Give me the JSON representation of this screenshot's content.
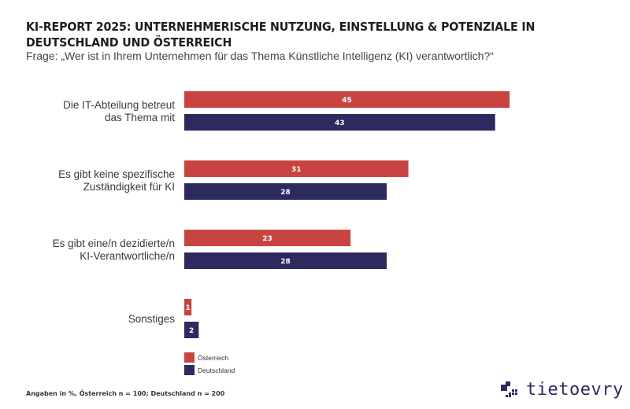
{
  "chart_data": {
    "type": "bar",
    "orientation": "horizontal",
    "title": "KI-REPORT 2025: UNTERNEHMERISCHE NUTZUNG, EINSTELLUNG & POTENZIALE IN DEUTSCHLAND UND ÖSTERREICH",
    "subtitle": "Frage: „Wer ist in Ihrem Unternehmen für das Thema Künstliche Intelligenz (KI) verantwortlich?“",
    "xlabel": "",
    "ylabel": "",
    "grid": false,
    "xlim": [
      0,
      45
    ],
    "categories": [
      [
        "Die IT-Abteilung betreut",
        "das Thema mit"
      ],
      [
        "Es gibt keine spezifische",
        "Zuständigkeit für KI"
      ],
      [
        "Es gibt eine/n dezidierte/n",
        "KI-Verantwortliche/n"
      ],
      [
        "Sonstiges"
      ]
    ],
    "series": [
      {
        "name": "Österreich",
        "color": "#c94440",
        "values": [
          45,
          31,
          23,
          1
        ]
      },
      {
        "name": "Deutschland",
        "color": "#2d2a60",
        "values": [
          43,
          28,
          28,
          2
        ]
      }
    ],
    "legend": {
      "placement": "bottom-left",
      "entries": [
        "Österreich",
        "Deutschland"
      ]
    },
    "footnote": "Angaben in %, Österreich n = 100; Deutschland n = 200"
  },
  "brand": {
    "logo_text": "tietoevry",
    "color": "#2c2a62"
  }
}
